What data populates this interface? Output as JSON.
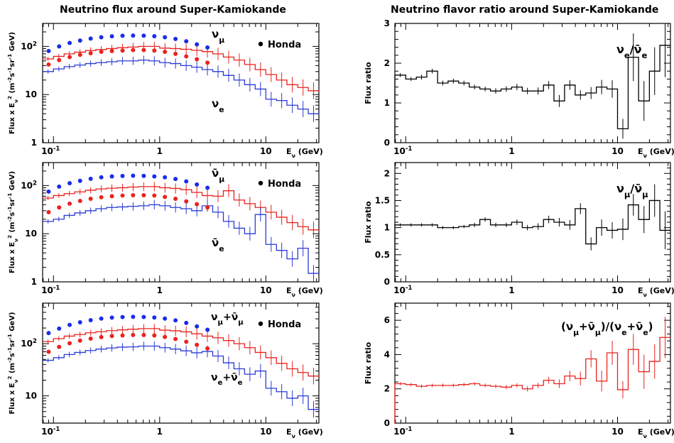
{
  "titles": {
    "left": "Neutrino flux around Super-Kamiokande",
    "right": "Neutrino flavor ratio around Super-Kamiokande"
  },
  "colors": {
    "mu": "#e8231f",
    "e": "#2b3bd6",
    "honda_mu": "#1a2ce8",
    "honda_e": "#e8231f",
    "ratio_red": "#e8231f",
    "ratio_black": "#000000"
  },
  "legend": {
    "honda": "Honda"
  },
  "axis_text": {
    "flux_ylabel": "Flux x E",
    "flux_ylabel_sup": "2",
    "flux_ylabel_sub": "ν",
    "flux_units": " (m",
    "flux_units_rest": "s",
    "flux_units_sr": "sr",
    "flux_units_gev": "GeV)",
    "ratio_ylabel": "Flux ratio",
    "xlabel_prefix": "E",
    "xlabel_sub": "ν",
    "xlabel_suffix": " (GeV)"
  },
  "chart_data": [
    {
      "type": "line",
      "panel": "flux-1",
      "title": "Neutrino flux around Super-Kamiokande",
      "xscale": "log",
      "yscale": "log",
      "xlim": [
        0.08,
        30
      ],
      "ylim": [
        1,
        300
      ],
      "x_ticks": [
        "10⁻¹",
        "1",
        "10"
      ],
      "y_ticks": [
        "1",
        "10",
        "10²"
      ],
      "labels": {
        "upper": "ν",
        "upper_sub": "μ",
        "lower": "ν",
        "lower_sub": "e"
      },
      "bin_edges": [
        0.079,
        0.1,
        0.126,
        0.158,
        0.2,
        0.251,
        0.316,
        0.398,
        0.501,
        0.631,
        0.794,
        1.0,
        1.26,
        1.58,
        2.0,
        2.51,
        3.16,
        3.98,
        5.01,
        6.31,
        7.94,
        10.0,
        12.6,
        15.8,
        20.0,
        25.1,
        31.6
      ],
      "series": [
        {
          "name": "ν_μ",
          "color": "mu",
          "values": [
            55,
            62,
            70,
            76,
            82,
            86,
            90,
            94,
            97,
            100,
            100,
            92,
            90,
            87,
            83,
            78,
            70,
            60,
            52,
            42,
            33,
            26,
            20,
            16,
            14,
            12
          ]
        },
        {
          "name": "ν_e",
          "color": "e",
          "values": [
            30,
            34,
            38,
            41,
            44,
            46,
            48,
            50,
            50,
            52,
            50,
            46,
            44,
            40,
            37,
            33,
            30,
            25,
            20,
            16,
            13,
            8,
            7.5,
            6,
            5,
            4
          ]
        }
      ],
      "honda": {
        "x": [
          0.09,
          0.113,
          0.142,
          0.178,
          0.224,
          0.282,
          0.355,
          0.447,
          0.562,
          0.708,
          0.891,
          1.12,
          1.41,
          1.78,
          2.24,
          2.82
        ],
        "mu": [
          80,
          100,
          118,
          132,
          145,
          155,
          162,
          166,
          168,
          167,
          163,
          155,
          143,
          128,
          110,
          95
        ],
        "e": [
          42,
          52,
          60,
          67,
          72,
          77,
          80,
          82,
          84,
          84,
          82,
          77,
          70,
          62,
          54,
          46
        ]
      }
    },
    {
      "type": "line",
      "panel": "flux-2",
      "title": "",
      "xscale": "log",
      "yscale": "log",
      "xlim": [
        0.08,
        30
      ],
      "ylim": [
        1,
        300
      ],
      "x_ticks": [
        "10⁻¹",
        "1",
        "10"
      ],
      "y_ticks": [
        "1",
        "10",
        "10²"
      ],
      "labels": {
        "upper": "ν̄",
        "upper_sub": "μ",
        "lower": "ν̄",
        "lower_sub": "e"
      },
      "bin_edges": [
        0.079,
        0.1,
        0.126,
        0.158,
        0.2,
        0.251,
        0.316,
        0.398,
        0.501,
        0.631,
        0.794,
        1.0,
        1.26,
        1.58,
        2.0,
        2.51,
        3.16,
        3.98,
        5.01,
        6.31,
        7.94,
        10.0,
        12.6,
        15.8,
        20.0,
        25.1,
        31.6
      ],
      "series": [
        {
          "name": "ν̄_μ",
          "color": "mu",
          "values": [
            55,
            62,
            68,
            74,
            80,
            85,
            88,
            90,
            93,
            95,
            95,
            90,
            87,
            82,
            72,
            62,
            60,
            78,
            50,
            42,
            35,
            28,
            22,
            17,
            14,
            12
          ]
        },
        {
          "name": "ν̄_e",
          "color": "e",
          "values": [
            18,
            20,
            24,
            27,
            30,
            33,
            35,
            36,
            37,
            38,
            40,
            38,
            35,
            33,
            30,
            38,
            28,
            18,
            13,
            10,
            25,
            6,
            4.5,
            3,
            5,
            1.5
          ]
        }
      ],
      "honda": {
        "x": [
          0.09,
          0.113,
          0.142,
          0.178,
          0.224,
          0.282,
          0.355,
          0.447,
          0.562,
          0.708,
          0.891,
          1.12,
          1.41,
          1.78,
          2.24,
          2.82
        ],
        "mu": [
          75,
          95,
          112,
          125,
          138,
          148,
          155,
          158,
          160,
          159,
          155,
          148,
          137,
          122,
          105,
          90
        ],
        "e": [
          28,
          35,
          42,
          48,
          53,
          57,
          60,
          62,
          63,
          63,
          62,
          58,
          53,
          47,
          41,
          35
        ]
      }
    },
    {
      "type": "line",
      "panel": "flux-3",
      "title": "",
      "xscale": "log",
      "yscale": "log",
      "xlim": [
        0.08,
        30
      ],
      "ylim": [
        3,
        600
      ],
      "x_ticks": [
        "10⁻¹",
        "1",
        "10"
      ],
      "y_ticks": [
        "10",
        "10²"
      ],
      "labels": {
        "upper": "ν",
        "upper_sub": "μ",
        "upper_plus": "+ν̄",
        "upper_plus_sub": "μ",
        "lower": "ν",
        "lower_sub": "e",
        "lower_plus": "+ν̄",
        "lower_plus_sub": "e"
      },
      "bin_edges": [
        0.079,
        0.1,
        0.126,
        0.158,
        0.2,
        0.251,
        0.316,
        0.398,
        0.501,
        0.631,
        0.794,
        1.0,
        1.26,
        1.58,
        2.0,
        2.51,
        3.16,
        3.98,
        5.01,
        6.31,
        7.94,
        10.0,
        12.6,
        15.8,
        20.0,
        25.1,
        31.6
      ],
      "series": [
        {
          "name": "ν_μ+ν̄_μ",
          "color": "mu",
          "values": [
            110,
            125,
            140,
            150,
            162,
            170,
            178,
            184,
            190,
            195,
            195,
            182,
            177,
            169,
            155,
            140,
            130,
            115,
            100,
            84,
            68,
            54,
            42,
            33,
            28,
            24
          ]
        },
        {
          "name": "ν_e+ν̄_e",
          "color": "e",
          "values": [
            48,
            54,
            62,
            68,
            74,
            79,
            83,
            86,
            87,
            90,
            90,
            84,
            79,
            73,
            67,
            71,
            58,
            43,
            33,
            26,
            30,
            14,
            12,
            9,
            10,
            5.5
          ]
        }
      ],
      "honda": {
        "x": [
          0.09,
          0.113,
          0.142,
          0.178,
          0.224,
          0.282,
          0.355,
          0.447,
          0.562,
          0.708,
          0.891,
          1.12,
          1.41,
          1.78,
          2.24,
          2.82
        ],
        "mu": [
          160,
          195,
          230,
          257,
          283,
          303,
          317,
          324,
          328,
          326,
          318,
          303,
          280,
          250,
          215,
          185
        ],
        "e": [
          70,
          87,
          102,
          115,
          125,
          134,
          140,
          144,
          147,
          147,
          144,
          135,
          123,
          109,
          95,
          81
        ]
      }
    },
    {
      "type": "line",
      "panel": "ratio-1",
      "title": "Neutrino flavor ratio around Super-Kamiokande",
      "xscale": "log",
      "xlim": [
        0.079,
        31.6
      ],
      "ylim": [
        0,
        3
      ],
      "ylabel": "Flux ratio",
      "x_ticks": [
        "10⁻¹",
        "1",
        "10"
      ],
      "y_ticks": [
        "0",
        "1",
        "2",
        "3"
      ],
      "label": {
        "a": "ν",
        "a_sub": "e",
        "slash": "/",
        "b": "ν̄",
        "b_sub": "e"
      },
      "color": "ratio_black",
      "bin_edges": [
        0.079,
        0.1,
        0.126,
        0.158,
        0.2,
        0.251,
        0.316,
        0.398,
        0.501,
        0.631,
        0.794,
        1.0,
        1.26,
        1.58,
        2.0,
        2.51,
        3.16,
        3.98,
        5.01,
        6.31,
        7.94,
        10.0,
        12.6,
        15.8,
        20.0,
        25.1,
        31.6
      ],
      "values": [
        1.7,
        1.6,
        1.65,
        1.8,
        1.5,
        1.55,
        1.5,
        1.4,
        1.35,
        1.3,
        1.35,
        1.4,
        1.3,
        1.3,
        1.45,
        1.05,
        1.45,
        1.2,
        1.25,
        1.4,
        1.35,
        0.35,
        2.15,
        1.05,
        1.8,
        2.45
      ],
      "errors": [
        0.05,
        0.05,
        0.06,
        0.06,
        0.06,
        0.06,
        0.06,
        0.06,
        0.06,
        0.07,
        0.07,
        0.08,
        0.08,
        0.09,
        0.1,
        0.15,
        0.12,
        0.12,
        0.15,
        0.18,
        0.22,
        0.25,
        0.6,
        0.5,
        0.6,
        0.8
      ]
    },
    {
      "type": "line",
      "panel": "ratio-2",
      "title": "",
      "xscale": "log",
      "xlim": [
        0.079,
        31.6
      ],
      "ylim": [
        0,
        2.2
      ],
      "ylabel": "Flux ratio",
      "x_ticks": [
        "10⁻¹",
        "1",
        "10"
      ],
      "y_ticks": [
        "0",
        "0.5",
        "1",
        "1.5",
        "2"
      ],
      "label": {
        "a": "ν",
        "a_sub": "μ",
        "slash": "/",
        "b": "ν̄",
        "b_sub": "μ"
      },
      "color": "ratio_black",
      "bin_edges": [
        0.079,
        0.1,
        0.126,
        0.158,
        0.2,
        0.251,
        0.316,
        0.398,
        0.501,
        0.631,
        0.794,
        1.0,
        1.26,
        1.58,
        2.0,
        2.51,
        3.16,
        3.98,
        5.01,
        6.31,
        7.94,
        10.0,
        12.6,
        15.8,
        20.0,
        25.1,
        31.6
      ],
      "values": [
        1.05,
        1.05,
        1.05,
        1.05,
        1.0,
        1.0,
        1.02,
        1.05,
        1.15,
        1.05,
        1.05,
        1.1,
        1.0,
        1.02,
        1.15,
        1.1,
        1.05,
        1.35,
        0.7,
        1.0,
        0.95,
        0.97,
        1.42,
        1.15,
        1.5,
        0.95
      ],
      "errors": [
        0.03,
        0.03,
        0.03,
        0.03,
        0.03,
        0.03,
        0.03,
        0.04,
        0.04,
        0.04,
        0.04,
        0.05,
        0.05,
        0.06,
        0.07,
        0.08,
        0.09,
        0.1,
        0.12,
        0.15,
        0.15,
        0.2,
        0.2,
        0.25,
        0.3,
        0.35
      ]
    },
    {
      "type": "line",
      "panel": "ratio-3",
      "title": "",
      "xscale": "log",
      "xlim": [
        0.079,
        31.6
      ],
      "ylim": [
        0,
        7
      ],
      "ylabel": "Flux ratio",
      "x_ticks": [
        "10⁻¹",
        "1",
        "10"
      ],
      "y_ticks": [
        "0",
        "2",
        "4",
        "6"
      ],
      "label": {
        "text": "(ν",
        "sub1": "μ",
        "t2": "+ν̄",
        "sub2": "μ",
        "t3": ")/(ν",
        "sub3": "e",
        "t4": "+ν̄",
        "sub4": "e",
        "t5": ")"
      },
      "color": "ratio_red",
      "bin_edges": [
        0.079,
        0.1,
        0.126,
        0.158,
        0.2,
        0.251,
        0.316,
        0.398,
        0.501,
        0.631,
        0.794,
        1.0,
        1.26,
        1.58,
        2.0,
        2.51,
        3.16,
        3.98,
        5.01,
        6.31,
        7.94,
        10.0,
        12.6,
        15.8,
        20.0,
        25.1,
        31.6
      ],
      "values": [
        2.3,
        2.25,
        2.15,
        2.2,
        2.2,
        2.2,
        2.25,
        2.3,
        2.2,
        2.15,
        2.1,
        2.2,
        2.0,
        2.2,
        2.5,
        2.3,
        2.75,
        2.6,
        3.75,
        2.45,
        4.1,
        1.95,
        4.3,
        3.0,
        3.6,
        5.0
      ],
      "errors": [
        0.1,
        0.1,
        0.1,
        0.1,
        0.1,
        0.1,
        0.1,
        0.1,
        0.1,
        0.1,
        0.12,
        0.12,
        0.15,
        0.15,
        0.2,
        0.25,
        0.3,
        0.4,
        0.5,
        0.6,
        0.7,
        0.5,
        0.9,
        1.0,
        1.0,
        1.2
      ]
    }
  ]
}
